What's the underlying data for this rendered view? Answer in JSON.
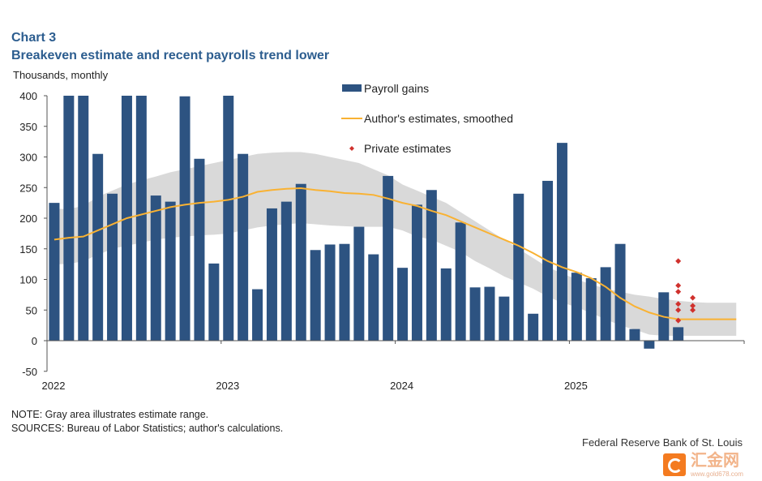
{
  "title": "Chart 3",
  "subtitle": "Breakeven estimate and recent payrolls trend lower",
  "units": "Thousands,  monthly",
  "note": "NOTE: Gray area illustrates estimate range.",
  "sources": "SOURCES: Bureau of Labor Statistics; author's calculations.",
  "source_org": "Federal Reserve Bank of St. Louis",
  "watermark": {
    "text": "汇金网",
    "url": "www.gold678.com"
  },
  "colors": {
    "bars": "#2d5381",
    "line": "#f9b233",
    "band": "#d9d9d9",
    "private": "#d0312d",
    "title": "#2c5d8f"
  },
  "chart_data": {
    "type": "bar",
    "ylim": [
      -50,
      400
    ],
    "yticks": [
      400,
      350,
      300,
      250,
      200,
      150,
      100,
      50,
      0,
      -50
    ],
    "xticks": [
      "2022",
      "2023",
      "2024",
      "2025"
    ],
    "grid": false,
    "legend_placement": "top-center",
    "start_month": "2022-01",
    "series": [
      {
        "name": "Payroll gains",
        "type": "bar",
        "values": [
          225,
          400,
          400,
          305,
          240,
          400,
          400,
          237,
          227,
          399,
          297,
          126,
          400,
          305,
          84,
          216,
          227,
          256,
          148,
          157,
          158,
          186,
          141,
          269,
          119,
          222,
          246,
          118,
          193,
          87,
          88,
          72,
          240,
          44,
          261,
          323,
          111,
          102,
          120,
          158,
          19,
          -13,
          79,
          22
        ]
      },
      {
        "name": "Author's estimates, smoothed",
        "type": "line",
        "values": [
          165,
          168,
          170,
          180,
          190,
          200,
          206,
          212,
          218,
          222,
          225,
          227,
          230,
          235,
          243,
          246,
          248,
          249,
          246,
          244,
          241,
          240,
          238,
          232,
          225,
          220,
          212,
          205,
          195,
          185,
          175,
          165,
          155,
          143,
          130,
          120,
          112,
          102,
          88,
          70,
          56,
          46,
          39,
          35,
          35,
          35,
          35,
          35
        ]
      },
      {
        "name": "Private estimates",
        "type": "scatter",
        "points": [
          [
            "2025-08",
            130
          ],
          [
            "2025-08",
            90
          ],
          [
            "2025-08",
            80
          ],
          [
            "2025-08",
            60
          ],
          [
            "2025-08",
            50
          ],
          [
            "2025-08",
            33
          ],
          [
            "2025-09",
            70
          ],
          [
            "2025-09",
            57
          ],
          [
            "2025-09",
            50
          ]
        ]
      }
    ],
    "band": {
      "upper": [
        215,
        215,
        220,
        235,
        245,
        255,
        262,
        268,
        275,
        280,
        285,
        290,
        295,
        300,
        305,
        307,
        308,
        308,
        305,
        300,
        295,
        290,
        280,
        270,
        255,
        245,
        235,
        225,
        210,
        195,
        180,
        165,
        150,
        135,
        120,
        110,
        100,
        92,
        85,
        80,
        75,
        72,
        68,
        65,
        63,
        62,
        62,
        62
      ],
      "lower": [
        125,
        125,
        130,
        140,
        150,
        155,
        160,
        165,
        168,
        170,
        172,
        173,
        175,
        180,
        185,
        188,
        190,
        192,
        190,
        188,
        187,
        186,
        186,
        186,
        180,
        170,
        165,
        155,
        145,
        130,
        118,
        105,
        95,
        85,
        72,
        62,
        55,
        45,
        35,
        25,
        18,
        10,
        8,
        8,
        8,
        8,
        8,
        8
      ]
    }
  }
}
